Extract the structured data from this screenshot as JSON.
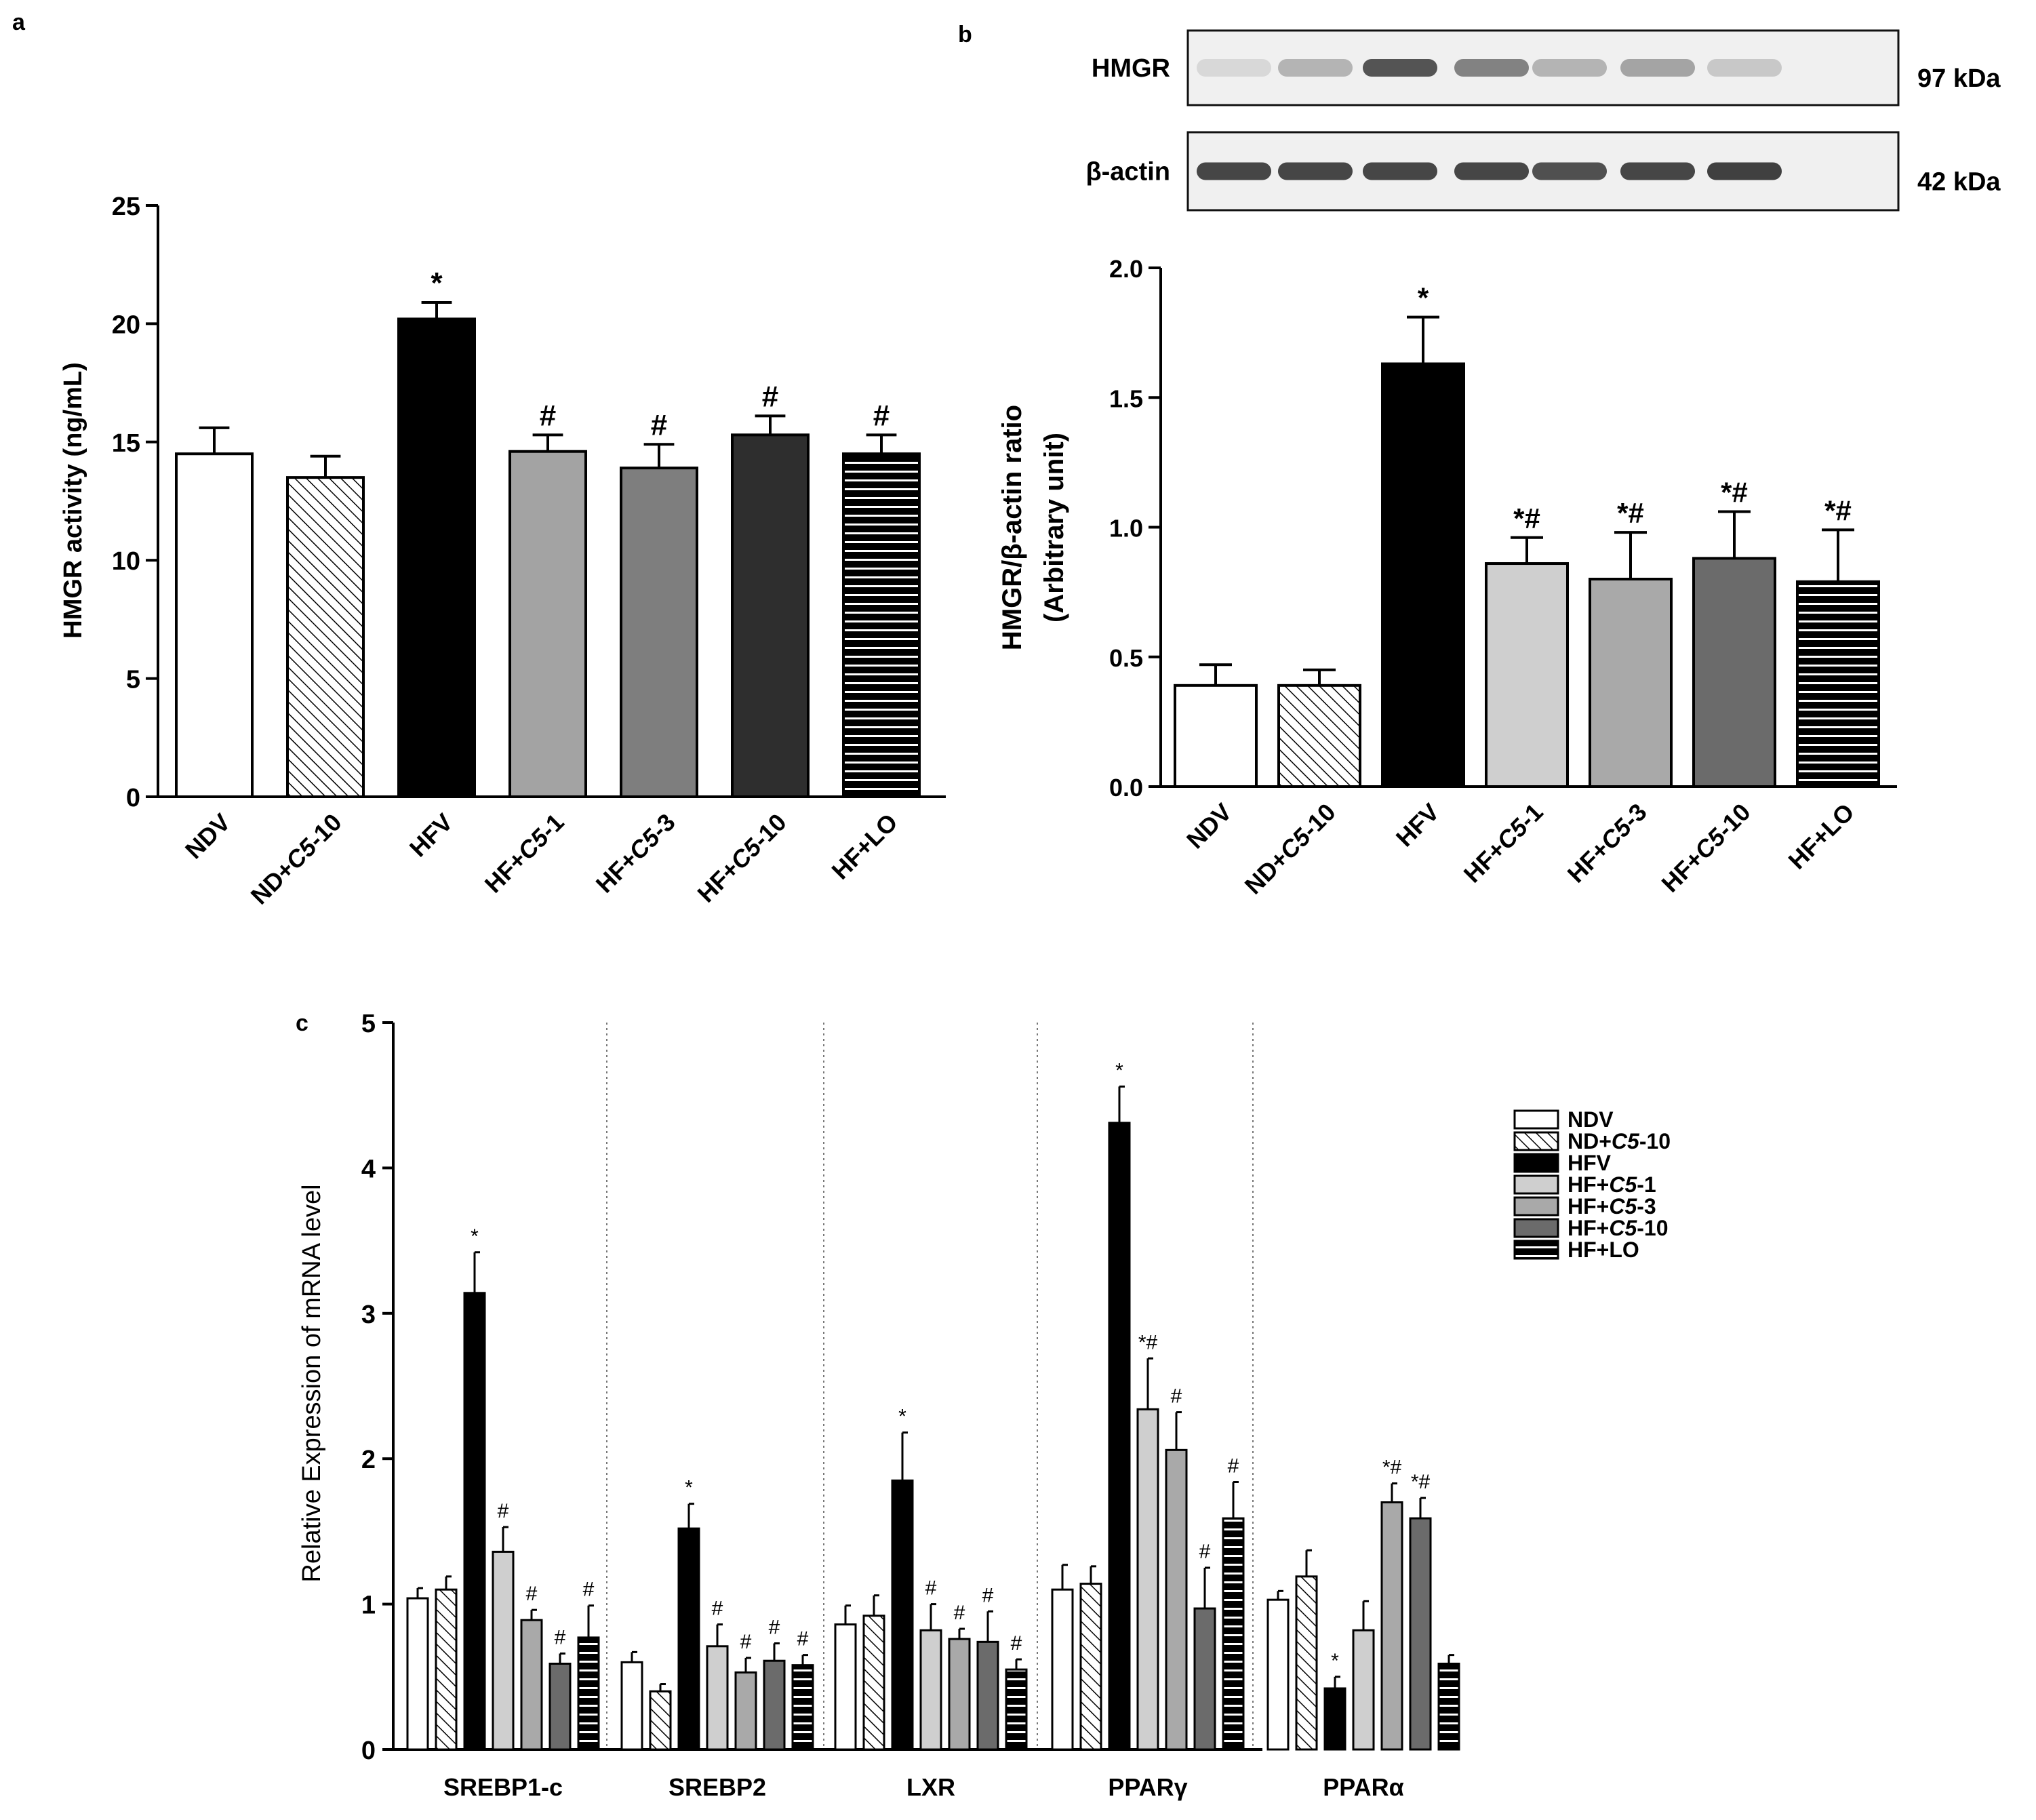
{
  "chart_data": [
    {
      "panel": "a",
      "type": "bar",
      "categories": [
        {
          "pre": "NDV",
          "it": "",
          "post": ""
        },
        {
          "pre": "ND+",
          "it": "C5",
          "post": "-10"
        },
        {
          "pre": "HFV",
          "it": "",
          "post": ""
        },
        {
          "pre": "HF+",
          "it": "C5",
          "post": "-1"
        },
        {
          "pre": "HF+",
          "it": "C5",
          "post": "-3"
        },
        {
          "pre": "HF+",
          "it": "C5",
          "post": "-10"
        },
        {
          "pre": "HF+LO",
          "it": "",
          "post": ""
        }
      ],
      "values": [
        14.5,
        13.5,
        20.2,
        14.6,
        13.9,
        15.3,
        14.5
      ],
      "errors": [
        1.1,
        0.9,
        0.7,
        0.7,
        1.0,
        0.8,
        0.8
      ],
      "annotations": [
        "",
        "",
        "*",
        "#",
        "#",
        "#",
        "#"
      ],
      "ylabel": "HMGR activity (ng/mL)",
      "ylim": [
        0,
        25
      ],
      "yticks": [
        "0",
        "5",
        "10",
        "15",
        "20",
        "25"
      ]
    },
    {
      "panel": "b",
      "type": "bar",
      "categories": [
        {
          "pre": "NDV",
          "it": "",
          "post": ""
        },
        {
          "pre": "ND+",
          "it": "C5",
          "post": "-10"
        },
        {
          "pre": "HFV",
          "it": "",
          "post": ""
        },
        {
          "pre": "HF+",
          "it": "C5",
          "post": "-1"
        },
        {
          "pre": "HF+",
          "it": "C5",
          "post": "-3"
        },
        {
          "pre": "HF+",
          "it": "C5",
          "post": "-10"
        },
        {
          "pre": "HF+LO",
          "it": "",
          "post": ""
        }
      ],
      "values": [
        0.39,
        0.39,
        1.63,
        0.86,
        0.8,
        0.88,
        0.79
      ],
      "errors": [
        0.08,
        0.06,
        0.18,
        0.1,
        0.18,
        0.18,
        0.2
      ],
      "annotations": [
        "",
        "",
        "*",
        "*#",
        "*#",
        "*#",
        "*#"
      ],
      "ylabel_line1": "HMGR/β-actin ratio",
      "ylabel_line2": "(Arbitrary unit)",
      "ylim": [
        0,
        2.0
      ],
      "yticks": [
        "0.0",
        "0.5",
        "1.0",
        "1.5",
        "2.0"
      ]
    },
    {
      "panel": "c",
      "type": "bar",
      "groups": [
        "SREBP1-c",
        "SREBP2",
        "LXR",
        "PPARγ",
        "PPARα"
      ],
      "series": [
        {
          "name": "NDV",
          "values": [
            1.04,
            0.6,
            0.86,
            1.1,
            1.03
          ],
          "errors": [
            0.07,
            0.07,
            0.13,
            0.17,
            0.06
          ],
          "annotations": [
            "",
            "",
            "",
            "",
            ""
          ]
        },
        {
          "name": "ND+C5-10",
          "values": [
            1.1,
            0.4,
            0.92,
            1.14,
            1.19
          ],
          "errors": [
            0.09,
            0.05,
            0.14,
            0.12,
            0.18
          ],
          "annotations": [
            "",
            "",
            "",
            "",
            ""
          ]
        },
        {
          "name": "HFV",
          "values": [
            3.14,
            1.52,
            1.85,
            4.31,
            0.42
          ],
          "errors": [
            0.28,
            0.17,
            0.33,
            0.25,
            0.08
          ],
          "annotations": [
            "*",
            "*",
            "*",
            "*",
            "*"
          ]
        },
        {
          "name": "HF+C5-1",
          "values": [
            1.36,
            0.71,
            0.82,
            2.34,
            0.82
          ],
          "errors": [
            0.17,
            0.15,
            0.18,
            0.35,
            0.2
          ],
          "annotations": [
            "#",
            "#",
            "#",
            "*#",
            ""
          ]
        },
        {
          "name": "HF+C5-3",
          "values": [
            0.89,
            0.53,
            0.76,
            2.06,
            1.7
          ],
          "errors": [
            0.07,
            0.1,
            0.07,
            0.26,
            0.13
          ],
          "annotations": [
            "#",
            "#",
            "#",
            "#",
            "*#"
          ]
        },
        {
          "name": "HF+C5-10",
          "values": [
            0.59,
            0.61,
            0.74,
            0.97,
            1.59
          ],
          "errors": [
            0.07,
            0.12,
            0.21,
            0.28,
            0.14
          ],
          "annotations": [
            "#",
            "#",
            "#",
            "#",
            "*#"
          ]
        },
        {
          "name": "HF+LO",
          "values": [
            0.77,
            0.58,
            0.55,
            1.59,
            0.59
          ],
          "errors": [
            0.22,
            0.07,
            0.07,
            0.25,
            0.06
          ],
          "annotations": [
            "#",
            "#",
            "#",
            "#",
            ""
          ]
        }
      ],
      "legend": [
        {
          "pre": "NDV",
          "it": "",
          "post": ""
        },
        {
          "pre": "ND+",
          "it": "C5",
          "post": "-10"
        },
        {
          "pre": "HFV",
          "it": "",
          "post": ""
        },
        {
          "pre": "HF+",
          "it": "C5",
          "post": "-1"
        },
        {
          "pre": "HF+",
          "it": "C5",
          "post": "-3"
        },
        {
          "pre": "HF+",
          "it": "C5",
          "post": "-10"
        },
        {
          "pre": "HF+LO",
          "it": "",
          "post": ""
        }
      ],
      "ylabel": "Relative Expression of mRNA level",
      "ylim": [
        0,
        5
      ],
      "yticks": [
        "0",
        "1",
        "2",
        "3",
        "4",
        "5"
      ]
    }
  ],
  "labels": {
    "a": "a",
    "b": "b",
    "c": "c"
  },
  "blot": {
    "rows": [
      {
        "name": "HMGR",
        "kda": "97 kDa",
        "intensity": [
          0.12,
          0.3,
          0.78,
          0.55,
          0.3,
          0.38,
          0.2
        ]
      },
      {
        "name": "β-actin",
        "kda": "42 kDa",
        "intensity": [
          0.85,
          0.85,
          0.85,
          0.85,
          0.8,
          0.85,
          0.88
        ]
      }
    ]
  },
  "colors": {
    "ndv": "#ffffff",
    "hfv": "#000000",
    "c5_1": "#cfcfcf",
    "c5_3": "#a9a9a9",
    "c5_10_a": "#2e2e2e",
    "c5_10_bc": "#6b6b6b",
    "c5_1_a": "#a3a3a3",
    "c5_3_a": "#7e7e7e"
  }
}
